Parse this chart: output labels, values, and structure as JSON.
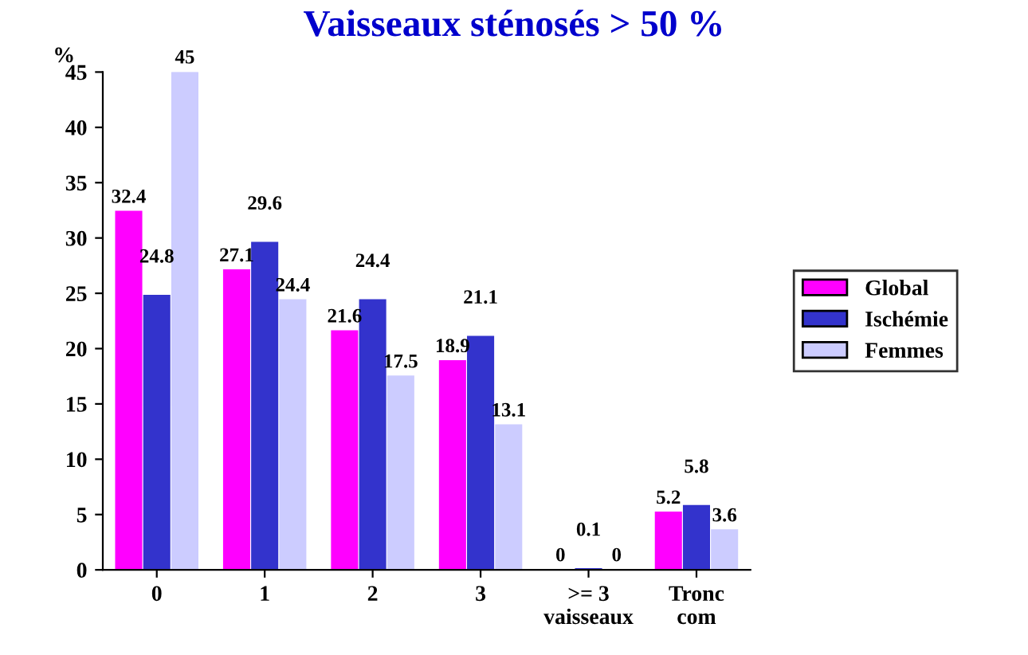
{
  "chart_data": {
    "type": "bar",
    "title": "Vaisseaux sténosés > 50 %",
    "ylabel": "%",
    "categories": [
      "0",
      "1",
      "2",
      "3",
      ">= 3\nvaisseaux",
      "Tronc\ncom"
    ],
    "series": [
      {
        "name": "Global",
        "color": "#ff00ff",
        "values": [
          32.4,
          27.1,
          21.6,
          18.9,
          0,
          5.2
        ]
      },
      {
        "name": "Ischémie",
        "color": "#3333cc",
        "values": [
          24.8,
          29.6,
          24.4,
          21.1,
          0.1,
          5.8
        ]
      },
      {
        "name": "Femmes",
        "color": "#ccccff",
        "values": [
          45,
          24.4,
          17.5,
          13.1,
          0,
          3.6
        ]
      }
    ],
    "ylim": [
      0,
      45
    ],
    "yticks": [
      0,
      5,
      10,
      15,
      20,
      25,
      30,
      35,
      40,
      45
    ],
    "data_labels": true,
    "legend": "right",
    "grid": false
  }
}
